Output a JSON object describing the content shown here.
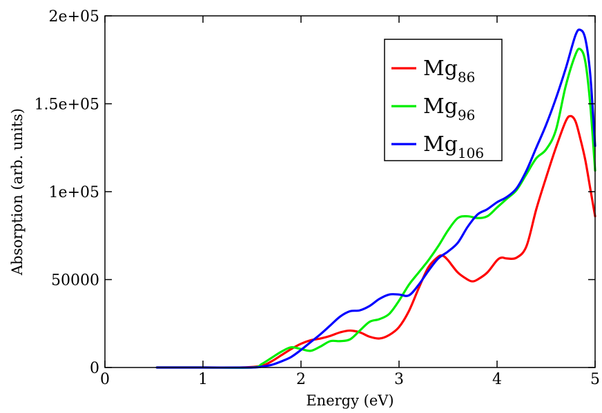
{
  "chart_data": {
    "type": "line",
    "title": "",
    "xlabel": "Energy (eV)",
    "ylabel": "Absorption (arb. units)",
    "xlim": [
      0,
      5
    ],
    "ylim": [
      0,
      200000
    ],
    "xticks": [
      0,
      1,
      2,
      3,
      4,
      5
    ],
    "xtick_labels": [
      "0",
      "1",
      "2",
      "3",
      "4",
      "5"
    ],
    "yticks": [
      0,
      50000,
      100000,
      150000,
      200000
    ],
    "ytick_labels": [
      "0",
      "50000",
      "1e+05",
      "1.5e+05",
      "2e+05"
    ],
    "grid": false,
    "legend_position": "top-right",
    "series": [
      {
        "name_base": "Mg",
        "name_sub": "86",
        "color": "#ff0000",
        "x": [
          0.53,
          1.0,
          1.4,
          1.6,
          1.7,
          1.8,
          1.9,
          2.0,
          2.1,
          2.2,
          2.3,
          2.4,
          2.5,
          2.6,
          2.7,
          2.8,
          2.9,
          3.0,
          3.1,
          3.2,
          3.3,
          3.4,
          3.45,
          3.5,
          3.6,
          3.7,
          3.75,
          3.8,
          3.9,
          4.0,
          4.05,
          4.1,
          4.2,
          4.3,
          4.4,
          4.5,
          4.6,
          4.7,
          4.75,
          4.8,
          4.85,
          4.9,
          4.95,
          5.0
        ],
        "y": [
          0,
          0,
          0,
          1000,
          3500,
          7000,
          10500,
          13500,
          15500,
          16500,
          18000,
          20000,
          21000,
          20000,
          17500,
          16500,
          18500,
          23000,
          32000,
          45000,
          57000,
          63000,
          63500,
          61000,
          54000,
          50000,
          49000,
          50000,
          54000,
          61000,
          62500,
          62000,
          62500,
          69000,
          90000,
          108000,
          125000,
          140000,
          143000,
          140000,
          130000,
          118000,
          102000,
          86000
        ]
      },
      {
        "name_base": "Mg",
        "name_sub": "96",
        "color": "#00ee00",
        "x": [
          0.53,
          1.0,
          1.5,
          1.6,
          1.7,
          1.8,
          1.9,
          2.0,
          2.1,
          2.2,
          2.3,
          2.4,
          2.5,
          2.6,
          2.7,
          2.8,
          2.9,
          3.0,
          3.1,
          3.2,
          3.3,
          3.4,
          3.5,
          3.6,
          3.7,
          3.8,
          3.9,
          4.0,
          4.1,
          4.2,
          4.3,
          4.4,
          4.5,
          4.6,
          4.7,
          4.8,
          4.85,
          4.9,
          4.95,
          5.0
        ],
        "y": [
          0,
          0,
          0,
          2000,
          5500,
          9000,
          11500,
          10500,
          9500,
          12000,
          15000,
          15000,
          16000,
          21000,
          26000,
          27500,
          30500,
          38000,
          47000,
          54000,
          61000,
          69000,
          78000,
          85000,
          86000,
          85000,
          86000,
          91000,
          96000,
          101000,
          110000,
          119000,
          124000,
          135000,
          160000,
          178000,
          181000,
          174000,
          150000,
          112000
        ]
      },
      {
        "name_base": "Mg",
        "name_sub": "106",
        "color": "#0000ff",
        "x": [
          0.53,
          1.0,
          1.5,
          1.6,
          1.7,
          1.8,
          1.9,
          2.0,
          2.1,
          2.2,
          2.3,
          2.4,
          2.5,
          2.6,
          2.7,
          2.8,
          2.9,
          3.0,
          3.1,
          3.2,
          3.3,
          3.4,
          3.5,
          3.6,
          3.7,
          3.8,
          3.9,
          4.0,
          4.1,
          4.2,
          4.3,
          4.4,
          4.5,
          4.6,
          4.7,
          4.8,
          4.85,
          4.9,
          4.95,
          5.0
        ],
        "y": [
          0,
          0,
          0,
          500,
          1500,
          3500,
          6000,
          10000,
          14500,
          19000,
          24000,
          29000,
          32000,
          32500,
          35000,
          39000,
          41500,
          41500,
          41000,
          47000,
          55000,
          62000,
          66000,
          71000,
          80000,
          87000,
          90000,
          94000,
          97000,
          102000,
          112000,
          125000,
          138000,
          153000,
          170000,
          189000,
          192000,
          187000,
          167000,
          126000
        ]
      }
    ]
  }
}
